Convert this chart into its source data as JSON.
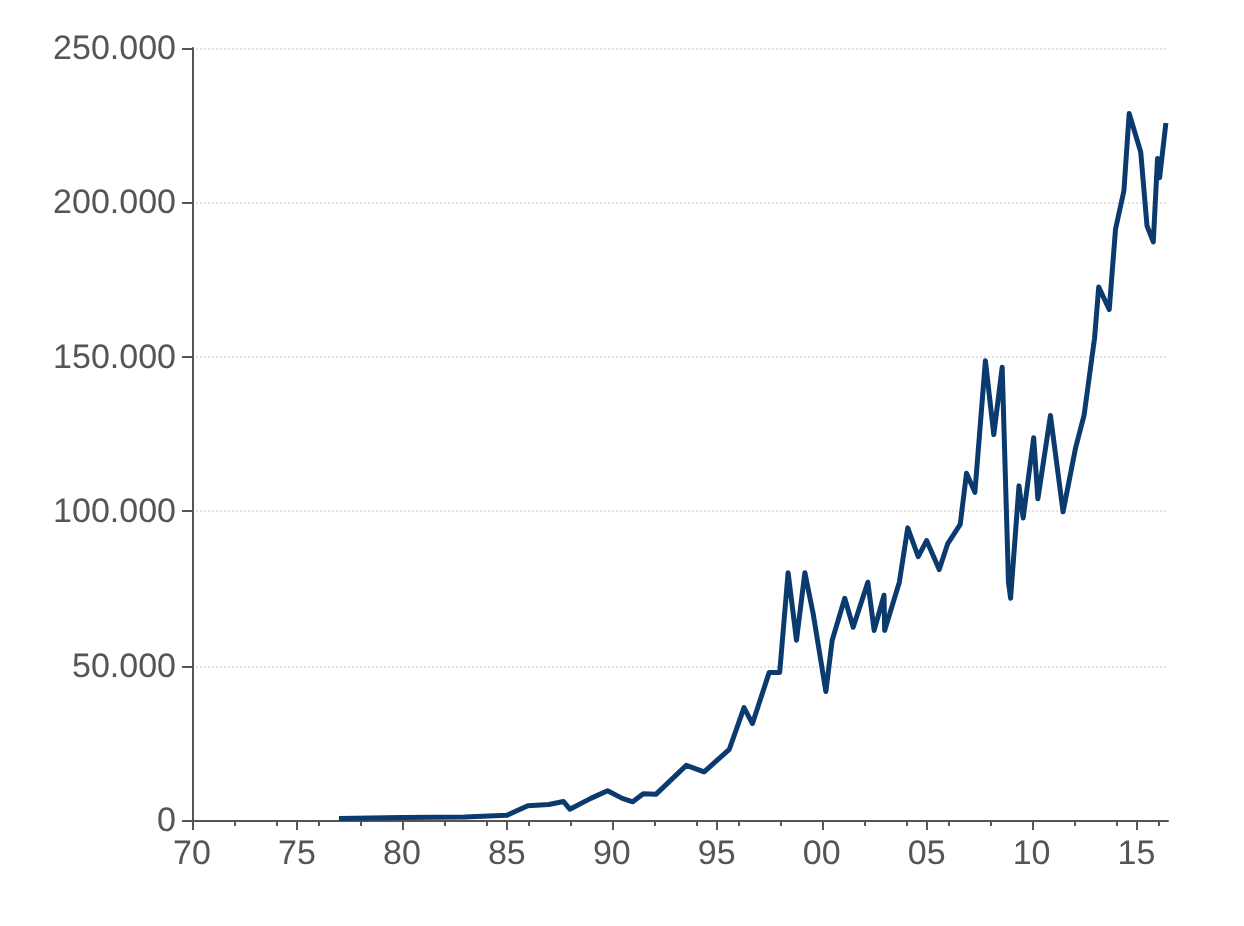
{
  "chart_data": {
    "type": "line",
    "grid": "y",
    "marker": "none",
    "line_style": "solid",
    "xlim": [
      1970,
      2016.5
    ],
    "xticks": [
      {
        "value": 1970,
        "label": "70"
      },
      {
        "value": 1975,
        "label": "75"
      },
      {
        "value": 1980,
        "label": "80"
      },
      {
        "value": 1985,
        "label": "85"
      },
      {
        "value": 1990,
        "label": "90"
      },
      {
        "value": 1995,
        "label": "95"
      },
      {
        "value": 2000,
        "label": "00"
      },
      {
        "value": 2005,
        "label": "05"
      },
      {
        "value": 2010,
        "label": "10"
      },
      {
        "value": 2015,
        "label": "15"
      }
    ],
    "ylim": [
      0,
      250000
    ],
    "yticks": [
      0,
      {
        "value": 50000,
        "label": "50.000"
      },
      {
        "value": 100000,
        "label": "100.000"
      },
      {
        "value": 150000,
        "label": "150.000"
      },
      {
        "value": 200000,
        "label": "200.000"
      },
      {
        "value": 250000,
        "label": "250.000"
      }
    ],
    "series": [
      {
        "color": "#0b3a6e",
        "x": [
          1977,
          1980,
          1983,
          1985,
          1986,
          1987,
          1987.7,
          1988,
          1989,
          1989.8,
          1990.5,
          1991,
          1991.5,
          1992.1,
          1993.55,
          1994.4,
          1995.6,
          1996.3,
          1996.7,
          1997.5,
          1998,
          1998.4,
          1998.8,
          1999.2,
          1999.6,
          2000.2,
          2000.5,
          2001.1,
          2001.5,
          2002.2,
          2002.5,
          2002.97,
          2003,
          2003.7,
          2004.1,
          2004.6,
          2005,
          2005.6,
          2006,
          2006.6,
          2006.9,
          2007.3,
          2007.8,
          2008.2,
          2008.6,
          2008.9,
          2009,
          2009.4,
          2009.6,
          2010.1,
          2010.3,
          2010.9,
          2011.5,
          2012.1,
          2012.5,
          2013,
          2013.2,
          2013.7,
          2014,
          2014.4,
          2014.65,
          2015.2,
          2015.5,
          2015.8,
          2016,
          2016.1,
          2016.4
        ],
        "values": [
          500,
          800,
          1000,
          1500,
          4600,
          5000,
          6000,
          3500,
          7000,
          9500,
          7000,
          5900,
          8500,
          8300,
          17700,
          15600,
          22900,
          36400,
          31200,
          47800,
          47800,
          80100,
          58200,
          80100,
          66600,
          41600,
          58200,
          71800,
          62400,
          77000,
          61400,
          72800,
          61400,
          77000,
          94600,
          85300,
          90500,
          81100,
          89400,
          95700,
          112300,
          106100,
          148700,
          124800,
          146600,
          77000,
          71800,
          108200,
          97800,
          123800,
          104000,
          131000,
          99800,
          120600,
          131000,
          156000,
          172600,
          165300,
          191300,
          203800,
          228800,
          216300,
          192400,
          187200,
          214200,
          208000,
          225700
        ]
      }
    ]
  }
}
